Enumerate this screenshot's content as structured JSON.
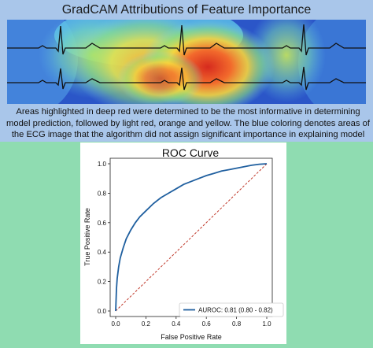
{
  "gradcam": {
    "title": "GradCAM Attributions of Feature Importance",
    "caption": "Areas highlighted in deep red were determined to be the most informative in determining model prediction, followed by light red, orange and yellow. The blue coloring denotes areas of the ECG image that the algorithm did not assign significant importance in explaining model prediction."
  },
  "colors": {
    "top_background": "#a9c6ea",
    "bottom_background": "#8fdcb1",
    "roc_line": "#1f5f9f",
    "diagonal": "#c0392b"
  },
  "chart_data": {
    "type": "line",
    "title": "ROC Curve",
    "xlabel": "False Positive Rate",
    "ylabel": "True Positive Rate",
    "xlim": [
      0.0,
      1.0
    ],
    "ylim": [
      0.0,
      1.0
    ],
    "x_ticks": [
      "0.0",
      "0.2",
      "0.4",
      "0.6",
      "0.8",
      "1.0"
    ],
    "y_ticks": [
      "0.0",
      "0.2",
      "0.4",
      "0.6",
      "0.8",
      "1.0"
    ],
    "grid": false,
    "legend_position": "lower-right",
    "series": [
      {
        "name": "AUROC: 0.81 (0.80 - 0.82)",
        "x": [
          0.0,
          0.005,
          0.01,
          0.02,
          0.03,
          0.05,
          0.07,
          0.1,
          0.13,
          0.16,
          0.2,
          0.25,
          0.3,
          0.35,
          0.4,
          0.45,
          0.5,
          0.55,
          0.6,
          0.65,
          0.7,
          0.75,
          0.8,
          0.85,
          0.9,
          0.95,
          1.0
        ],
        "y": [
          0.0,
          0.15,
          0.22,
          0.3,
          0.36,
          0.43,
          0.49,
          0.55,
          0.6,
          0.64,
          0.68,
          0.73,
          0.77,
          0.8,
          0.83,
          0.86,
          0.88,
          0.9,
          0.92,
          0.935,
          0.95,
          0.96,
          0.97,
          0.98,
          0.99,
          0.997,
          1.0
        ]
      }
    ],
    "reference_line": {
      "x": [
        0.0,
        1.0
      ],
      "y": [
        0.0,
        1.0
      ],
      "style": "dashed"
    }
  }
}
